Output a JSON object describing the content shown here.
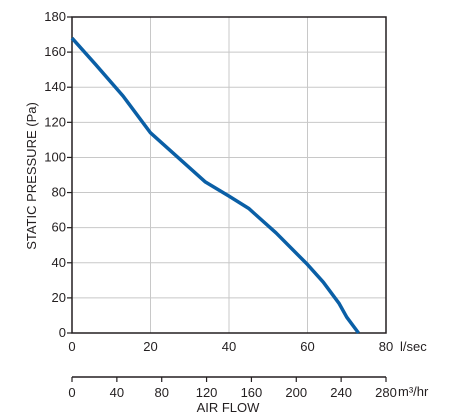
{
  "chart_data": {
    "type": "line",
    "title": "",
    "xlabel": "AIR FLOW",
    "ylabel": "STATIC PRESSURE (Pa)",
    "x_unit_primary": "l/sec",
    "x_unit_secondary": "m³/hr",
    "xlim": [
      0,
      80
    ],
    "ylim": [
      0,
      180
    ],
    "secondary_xlim": [
      0,
      280
    ],
    "x_ticks": [
      "0",
      "20",
      "40",
      "60",
      "80"
    ],
    "y_ticks": [
      "0",
      "20",
      "40",
      "60",
      "80",
      "100",
      "120",
      "140",
      "160",
      "180"
    ],
    "secondary_x_ticks": [
      "0",
      "40",
      "80",
      "120",
      "160",
      "200",
      "240",
      "280"
    ],
    "grid": true,
    "line_color": "#0a5fa6",
    "series": [
      {
        "x": [
          0,
          6,
          13,
          20,
          27,
          34,
          40,
          45,
          52,
          60,
          64,
          68,
          70,
          73
        ],
        "y": [
          168,
          153,
          135,
          114,
          100,
          86,
          78,
          71,
          57,
          39,
          29,
          17,
          9,
          0
        ]
      }
    ]
  }
}
